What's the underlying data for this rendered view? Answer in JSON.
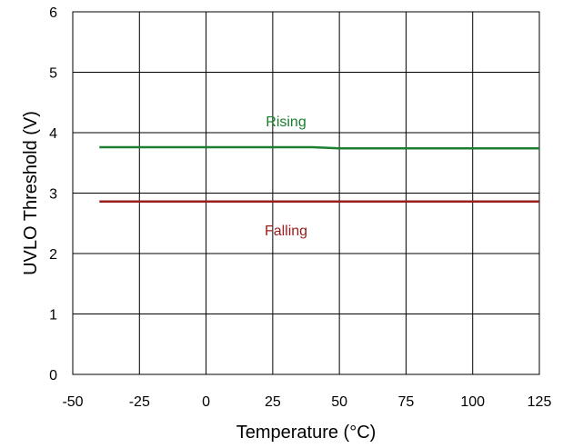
{
  "chart_data": {
    "type": "line",
    "xlabel": "Temperature (°C)",
    "ylabel": "UVLO Threshold (V)",
    "xlim": [
      -50,
      125
    ],
    "ylim": [
      0,
      6
    ],
    "x_ticks": [
      "-50",
      "-25",
      "0",
      "25",
      "50",
      "75",
      "100",
      "125"
    ],
    "y_ticks": [
      "0",
      "1",
      "2",
      "3",
      "4",
      "5",
      "6"
    ],
    "grid": true,
    "series": [
      {
        "name": "Rising",
        "color": "#1a7f2e",
        "x": [
          -40,
          0,
          25,
          40,
          50,
          75,
          100,
          125
        ],
        "y": [
          3.76,
          3.76,
          3.76,
          3.76,
          3.74,
          3.74,
          3.74,
          3.74
        ]
      },
      {
        "name": "Falling",
        "color": "#9b1c1c",
        "x": [
          -40,
          0,
          25,
          50,
          75,
          100,
          125
        ],
        "y": [
          2.86,
          2.86,
          2.86,
          2.86,
          2.86,
          2.86,
          2.86
        ]
      }
    ]
  }
}
